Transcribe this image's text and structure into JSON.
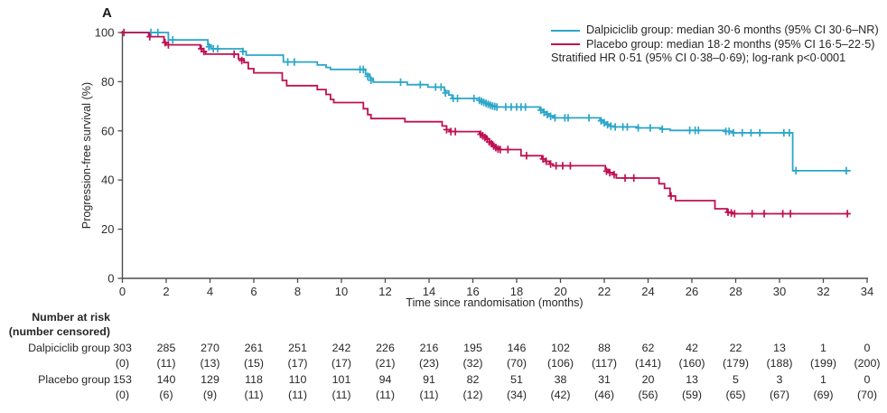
{
  "panel_label": "A",
  "legend": {
    "dalpiciclib": "Dalpiciclib group: median 30·6 months (95% CI 30·6–NR)",
    "placebo": "Placebo group: median 18·2 months (95% CI 16·5–22·5)",
    "hr_note": "Stratified HR 0·51 (95% CI 0·38–0·69); log-rank p<0·0001"
  },
  "chart_data": {
    "type": "line",
    "subtype": "kaplan-meier-step",
    "title": "",
    "xlabel": "Time since randomisation (months)",
    "ylabel": "Progression-free survival (%)",
    "xlim": [
      0,
      34
    ],
    "ylim": [
      0,
      100
    ],
    "grid": false,
    "legend_position": "top-right",
    "x_ticks": [
      0,
      2,
      4,
      6,
      8,
      10,
      12,
      14,
      16,
      18,
      20,
      22,
      24,
      26,
      28,
      30,
      32,
      34
    ],
    "y_ticks": [
      0,
      20,
      40,
      60,
      80,
      100
    ],
    "axis_color": "#4d4d4d",
    "tick_text_color": "#2e2e2e",
    "series": [
      {
        "name": "Dalpiciclib group",
        "color": "#2BA6C9",
        "median_months": "30·6",
        "points": [
          [
            0,
            100
          ],
          [
            2.1,
            97.0
          ],
          [
            3.9,
            95.0
          ],
          [
            4.05,
            93.4
          ],
          [
            5.5,
            92.3
          ],
          [
            5.65,
            90.8
          ],
          [
            7.35,
            88.0
          ],
          [
            8.9,
            86.8
          ],
          [
            9.3,
            85.8
          ],
          [
            9.5,
            85.0
          ],
          [
            11.1,
            83.0
          ],
          [
            11.3,
            81.4
          ],
          [
            11.45,
            79.8
          ],
          [
            13.0,
            78.8
          ],
          [
            13.95,
            77.8
          ],
          [
            14.7,
            76.2
          ],
          [
            14.9,
            74.6
          ],
          [
            15.05,
            73.2
          ],
          [
            16.3,
            72.4
          ],
          [
            16.45,
            71.8
          ],
          [
            16.6,
            71.2
          ],
          [
            16.75,
            70.6
          ],
          [
            16.9,
            70.1
          ],
          [
            17.1,
            69.7
          ],
          [
            19.05,
            68.7
          ],
          [
            19.2,
            67.8
          ],
          [
            19.35,
            66.9
          ],
          [
            19.5,
            66.1
          ],
          [
            19.7,
            65.3
          ],
          [
            21.8,
            64.4
          ],
          [
            21.95,
            63.5
          ],
          [
            22.1,
            62.7
          ],
          [
            22.25,
            61.9
          ],
          [
            22.45,
            61.6
          ],
          [
            23.5,
            61.2
          ],
          [
            24.6,
            60.7
          ],
          [
            25.0,
            60.2
          ],
          [
            27.5,
            59.8
          ],
          [
            27.85,
            59.2
          ],
          [
            30.6,
            43.8
          ],
          [
            33.25,
            43.8
          ]
        ],
        "censor_marks": [
          [
            1.3,
            100
          ],
          [
            1.62,
            100
          ],
          [
            2.3,
            97.0
          ],
          [
            3.95,
            94.2
          ],
          [
            4.15,
            93.4
          ],
          [
            4.35,
            93.4
          ],
          [
            5.5,
            92.3
          ],
          [
            7.55,
            88.0
          ],
          [
            7.85,
            88.0
          ],
          [
            10.85,
            85.0
          ],
          [
            11.0,
            85.0
          ],
          [
            11.2,
            82.2
          ],
          [
            11.35,
            80.6
          ],
          [
            12.7,
            79.8
          ],
          [
            13.6,
            78.8
          ],
          [
            14.3,
            77.8
          ],
          [
            14.55,
            77.8
          ],
          [
            14.75,
            75.4
          ],
          [
            15.1,
            73.2
          ],
          [
            15.3,
            73.2
          ],
          [
            16.05,
            73.2
          ],
          [
            16.3,
            72.4
          ],
          [
            16.4,
            72.0
          ],
          [
            16.5,
            71.6
          ],
          [
            16.6,
            71.2
          ],
          [
            16.7,
            70.8
          ],
          [
            16.8,
            70.4
          ],
          [
            16.9,
            70.1
          ],
          [
            17.0,
            69.9
          ],
          [
            17.1,
            69.7
          ],
          [
            17.5,
            69.7
          ],
          [
            17.75,
            69.7
          ],
          [
            18.0,
            69.7
          ],
          [
            18.2,
            69.7
          ],
          [
            18.4,
            69.7
          ],
          [
            19.1,
            68.4
          ],
          [
            19.25,
            67.5
          ],
          [
            19.4,
            66.6
          ],
          [
            19.55,
            65.9
          ],
          [
            19.75,
            65.3
          ],
          [
            20.2,
            65.3
          ],
          [
            20.35,
            65.3
          ],
          [
            21.3,
            65.3
          ],
          [
            21.85,
            64.1
          ],
          [
            22.0,
            63.3
          ],
          [
            22.15,
            62.5
          ],
          [
            22.3,
            61.9
          ],
          [
            22.5,
            61.6
          ],
          [
            22.85,
            61.6
          ],
          [
            23.05,
            61.6
          ],
          [
            23.55,
            61.2
          ],
          [
            24.1,
            61.2
          ],
          [
            24.65,
            60.7
          ],
          [
            25.9,
            60.2
          ],
          [
            26.15,
            60.2
          ],
          [
            26.3,
            60.2
          ],
          [
            27.55,
            59.8
          ],
          [
            27.7,
            59.8
          ],
          [
            27.9,
            59.2
          ],
          [
            28.3,
            59.2
          ],
          [
            28.7,
            59.2
          ],
          [
            29.1,
            59.2
          ],
          [
            30.2,
            59.2
          ],
          [
            30.45,
            59.2
          ],
          [
            30.75,
            43.8
          ],
          [
            33.05,
            43.8
          ]
        ]
      },
      {
        "name": "Placebo group",
        "color": "#BE1152",
        "median_months": "18·2",
        "points": [
          [
            0,
            100
          ],
          [
            1.2,
            98.3
          ],
          [
            1.9,
            95.9
          ],
          [
            2.0,
            95.0
          ],
          [
            3.55,
            93.4
          ],
          [
            3.7,
            92.3
          ],
          [
            3.8,
            91.2
          ],
          [
            5.3,
            89.3
          ],
          [
            5.55,
            87.8
          ],
          [
            5.75,
            85.3
          ],
          [
            6.0,
            83.6
          ],
          [
            7.3,
            80.5
          ],
          [
            7.5,
            78.4
          ],
          [
            8.9,
            76.8
          ],
          [
            9.3,
            74.8
          ],
          [
            9.5,
            72.8
          ],
          [
            9.65,
            71.5
          ],
          [
            11.0,
            69.0
          ],
          [
            11.2,
            66.6
          ],
          [
            11.35,
            65.0
          ],
          [
            12.9,
            63.7
          ],
          [
            14.6,
            62.0
          ],
          [
            14.8,
            60.5
          ],
          [
            14.95,
            59.7
          ],
          [
            16.3,
            59.0
          ],
          [
            16.45,
            58.0
          ],
          [
            16.6,
            56.8
          ],
          [
            16.75,
            55.5
          ],
          [
            16.9,
            54.2
          ],
          [
            17.05,
            53.2
          ],
          [
            17.2,
            52.4
          ],
          [
            18.2,
            49.9
          ],
          [
            19.15,
            48.6
          ],
          [
            19.3,
            47.6
          ],
          [
            19.5,
            46.5
          ],
          [
            19.65,
            45.8
          ],
          [
            22.05,
            44.3
          ],
          [
            22.2,
            43.0
          ],
          [
            22.4,
            42.2
          ],
          [
            22.55,
            40.8
          ],
          [
            24.5,
            38.5
          ],
          [
            24.75,
            36.6
          ],
          [
            25.0,
            33.5
          ],
          [
            25.25,
            31.6
          ],
          [
            27.05,
            28.3
          ],
          [
            27.6,
            26.9
          ],
          [
            27.85,
            26.3
          ],
          [
            33.2,
            26.3
          ]
        ],
        "censor_marks": [
          [
            0.07,
            100
          ],
          [
            1.25,
            98.3
          ],
          [
            1.95,
            95.9
          ],
          [
            2.1,
            95.0
          ],
          [
            3.6,
            93.4
          ],
          [
            3.72,
            92.3
          ],
          [
            5.1,
            91.2
          ],
          [
            5.45,
            88.6
          ],
          [
            14.8,
            60.5
          ],
          [
            15.0,
            59.7
          ],
          [
            15.2,
            59.7
          ],
          [
            16.35,
            58.6
          ],
          [
            16.45,
            58.0
          ],
          [
            16.55,
            57.3
          ],
          [
            16.65,
            56.6
          ],
          [
            16.75,
            55.5
          ],
          [
            16.85,
            54.8
          ],
          [
            16.95,
            53.8
          ],
          [
            17.05,
            53.2
          ],
          [
            17.15,
            52.6
          ],
          [
            17.25,
            52.4
          ],
          [
            17.6,
            52.4
          ],
          [
            18.45,
            49.9
          ],
          [
            19.2,
            48.6
          ],
          [
            19.35,
            47.6
          ],
          [
            19.55,
            46.5
          ],
          [
            19.8,
            45.8
          ],
          [
            20.1,
            45.8
          ],
          [
            20.45,
            45.8
          ],
          [
            22.1,
            43.6
          ],
          [
            22.25,
            43.0
          ],
          [
            22.45,
            42.2
          ],
          [
            22.95,
            40.8
          ],
          [
            23.35,
            40.8
          ],
          [
            25.05,
            33.5
          ],
          [
            27.65,
            26.9
          ],
          [
            27.8,
            26.6
          ],
          [
            27.95,
            26.3
          ],
          [
            28.75,
            26.3
          ],
          [
            29.3,
            26.3
          ],
          [
            30.15,
            26.3
          ],
          [
            30.5,
            26.3
          ],
          [
            33.1,
            26.3
          ]
        ]
      }
    ]
  },
  "risk_table": {
    "header_line1": "Number at risk",
    "header_line2": "(number censored)",
    "months": [
      0,
      2,
      4,
      6,
      8,
      10,
      12,
      14,
      16,
      18,
      20,
      22,
      24,
      26,
      28,
      30,
      32,
      34
    ],
    "rows": [
      {
        "label": "Dalpiciclib group",
        "at_risk": [
          "303",
          "285",
          "270",
          "261",
          "251",
          "242",
          "226",
          "216",
          "195",
          "146",
          "102",
          "88",
          "62",
          "42",
          "22",
          "13",
          "1",
          "0"
        ],
        "censored": [
          "(0)",
          "(11)",
          "(13)",
          "(15)",
          "(17)",
          "(17)",
          "(21)",
          "(23)",
          "(32)",
          "(70)",
          "(106)",
          "(117)",
          "(141)",
          "(160)",
          "(179)",
          "(188)",
          "(199)",
          "(200)"
        ]
      },
      {
        "label": "Placebo group",
        "at_risk": [
          "153",
          "140",
          "129",
          "118",
          "110",
          "101",
          "94",
          "91",
          "82",
          "51",
          "38",
          "31",
          "20",
          "13",
          "5",
          "3",
          "1",
          "0"
        ],
        "censored": [
          "(0)",
          "(6)",
          "(9)",
          "(11)",
          "(11)",
          "(11)",
          "(11)",
          "(11)",
          "(12)",
          "(34)",
          "(42)",
          "(46)",
          "(56)",
          "(59)",
          "(65)",
          "(67)",
          "(69)",
          "(70)"
        ]
      }
    ]
  }
}
